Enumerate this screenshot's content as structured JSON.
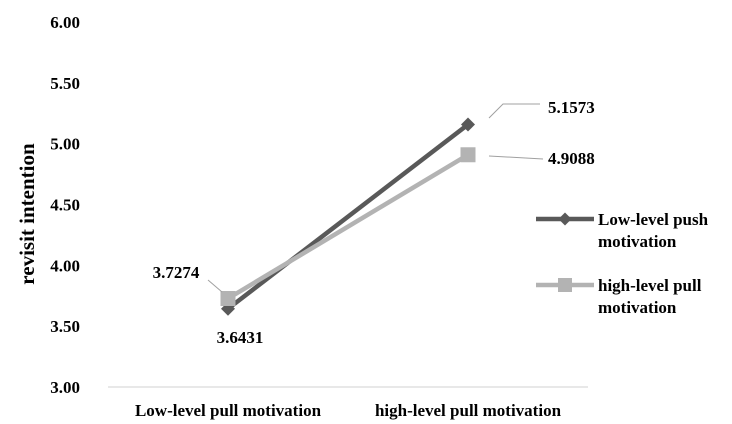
{
  "chart_data": {
    "type": "line",
    "categories": [
      "Low-level pull motivation",
      "high-level pull motivation"
    ],
    "ylabel": "revisit intention",
    "xlabel": "",
    "ylim": [
      3.0,
      6.0
    ],
    "yticks": [
      "3.00",
      "3.50",
      "4.00",
      "4.50",
      "5.00",
      "5.50",
      "6.00"
    ],
    "series": [
      {
        "name": "Low-level push motivation",
        "values": [
          3.6431,
          5.1573
        ],
        "labels": [
          "3.6431",
          "5.1573"
        ],
        "color": "#595959",
        "marker": "diamond"
      },
      {
        "name": "high-level pull motivation",
        "values": [
          3.7274,
          4.9088
        ],
        "labels": [
          "3.7274",
          "4.9088"
        ],
        "color": "#b3b3b3",
        "marker": "square"
      }
    ],
    "legend_position": "right",
    "grid": false
  }
}
